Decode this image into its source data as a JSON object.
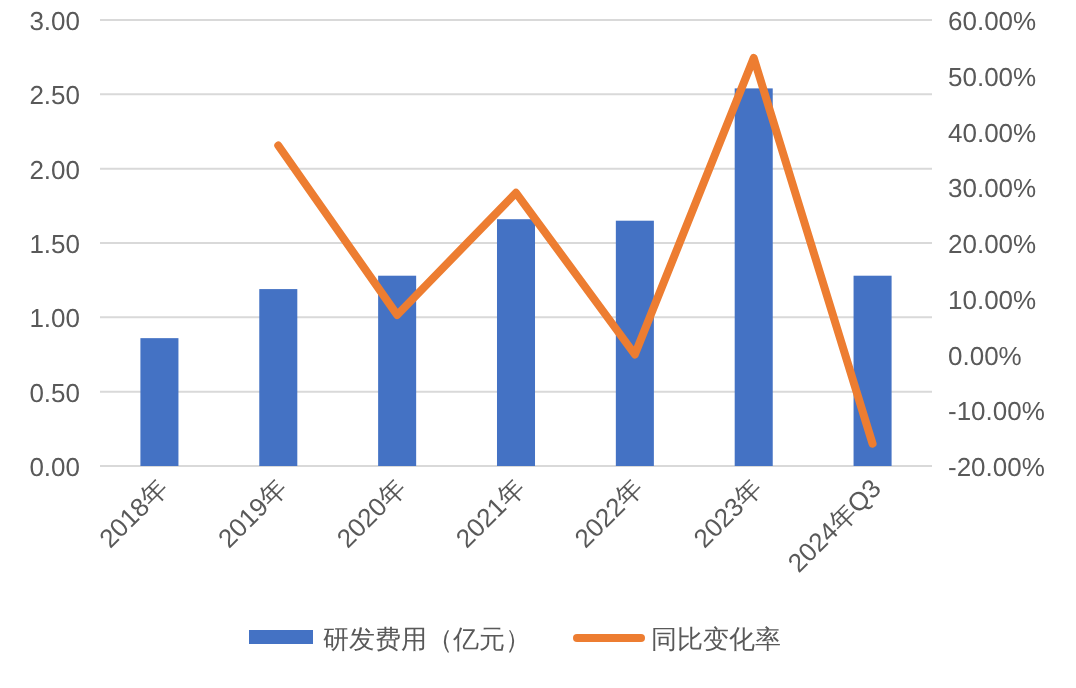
{
  "chart_data": {
    "type": "bar",
    "categories": [
      "2018年",
      "2019年",
      "2020年",
      "2021年",
      "2022年",
      "2023年",
      "2024年Q3"
    ],
    "series": [
      {
        "name": "研发费用（亿元）",
        "color": "#4472c4",
        "values": [
          0.86,
          1.19,
          1.28,
          1.66,
          1.65,
          2.54,
          1.28
        ]
      },
      {
        "name": "同比变化率",
        "type": "line",
        "axis": "y2",
        "color": "#ed7d31",
        "values": [
          null,
          37.5,
          7.1,
          29.0,
          0.0,
          53.2,
          -16.0
        ]
      }
    ],
    "ylim": [
      0,
      3
    ],
    "yticks": [
      {
        "value": 0,
        "label": "0.00"
      },
      {
        "value": 0.5,
        "label": "0.50"
      },
      {
        "value": 1,
        "label": "1.00"
      },
      {
        "value": 1.5,
        "label": "1.50"
      },
      {
        "value": 2,
        "label": "2.00"
      },
      {
        "value": 2.5,
        "label": "2.50"
      },
      {
        "value": 3,
        "label": "3.00"
      }
    ],
    "y2lim": [
      -20,
      60
    ],
    "y2ticks": [
      {
        "value": -20,
        "label": "-20.00%"
      },
      {
        "value": -10,
        "label": "-10.00%"
      },
      {
        "value": 0,
        "label": "0.00%"
      },
      {
        "value": 10,
        "label": "10.00%"
      },
      {
        "value": 20,
        "label": "20.00%"
      },
      {
        "value": 30,
        "label": "30.00%"
      },
      {
        "value": 40,
        "label": "40.00%"
      },
      {
        "value": 50,
        "label": "50.00%"
      },
      {
        "value": 60,
        "label": "60.00%"
      }
    ],
    "grid": "y",
    "legend": "bottom",
    "marker": "none",
    "line_style": "solid"
  }
}
